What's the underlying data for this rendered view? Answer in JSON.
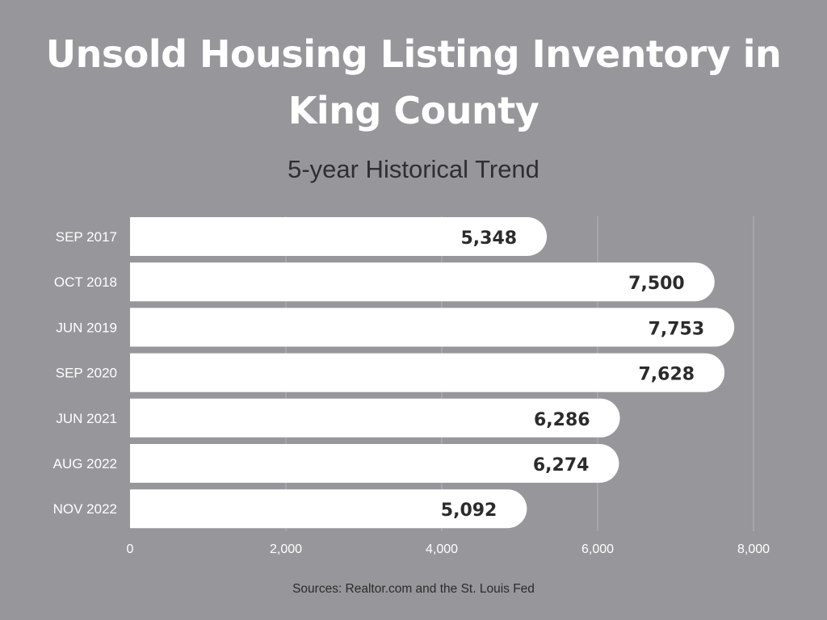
{
  "title": "Unsold Housing Listing Inventory in King County",
  "subtitle": "5-year Historical Trend",
  "source": "Sources: Realtor.com and the St. Louis Fed",
  "colors": {
    "background": "#97979b",
    "bar": "#ffffff",
    "gridline": "#b4b4b7",
    "value_label": "#2b2b2b",
    "axis_text": "#ffffff"
  },
  "chart_data": {
    "type": "bar",
    "orientation": "horizontal",
    "title": "Unsold Housing Listing Inventory in King County",
    "subtitle": "5-year Historical Trend",
    "categories": [
      "SEP 2017",
      "OCT 2018",
      "JUN 2019",
      "SEP 2020",
      "JUN 2021",
      "AUG 2022",
      "NOV 2022"
    ],
    "values": [
      5348,
      7500,
      7753,
      7628,
      6286,
      6274,
      5092
    ],
    "value_labels": [
      "5,348",
      "7,500",
      "7,753",
      "7,628",
      "6,286",
      "6,274",
      "5,092"
    ],
    "xlim": [
      0,
      8000
    ],
    "xticks": [
      0,
      2000,
      4000,
      6000,
      8000
    ],
    "xtick_labels": [
      "0",
      "2,000",
      "4,000",
      "6,000",
      "8,000"
    ],
    "xlabel": "",
    "ylabel": "",
    "grid": true,
    "legend": "none"
  }
}
